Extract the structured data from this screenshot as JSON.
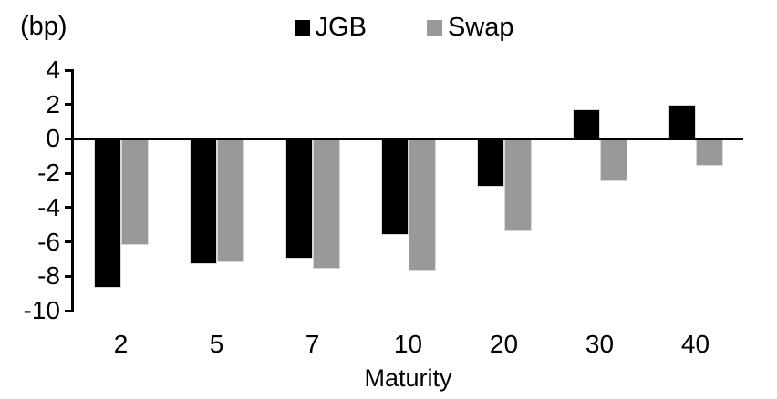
{
  "chart_data": {
    "type": "bar",
    "title": "",
    "ylabel": "(bp)",
    "xlabel": "Maturity",
    "categories": [
      "2",
      "5",
      "7",
      "10",
      "20",
      "30",
      "40"
    ],
    "series": [
      {
        "name": "JGB",
        "color": "#000000",
        "values": [
          -8.6,
          -7.2,
          -6.9,
          -5.5,
          -2.7,
          1.7,
          2.0
        ]
      },
      {
        "name": "Swap",
        "color": "#999999",
        "values": [
          -6.1,
          -7.1,
          -7.5,
          -7.6,
          -5.3,
          -2.4,
          -1.5
        ]
      }
    ],
    "ylim": [
      -10,
      4
    ],
    "yticks": [
      4,
      2,
      0,
      -2,
      -4,
      -6,
      -8,
      -10
    ],
    "grid": false,
    "legend_position": "top-center",
    "axis_color": "#000000",
    "background_color": "#ffffff"
  }
}
